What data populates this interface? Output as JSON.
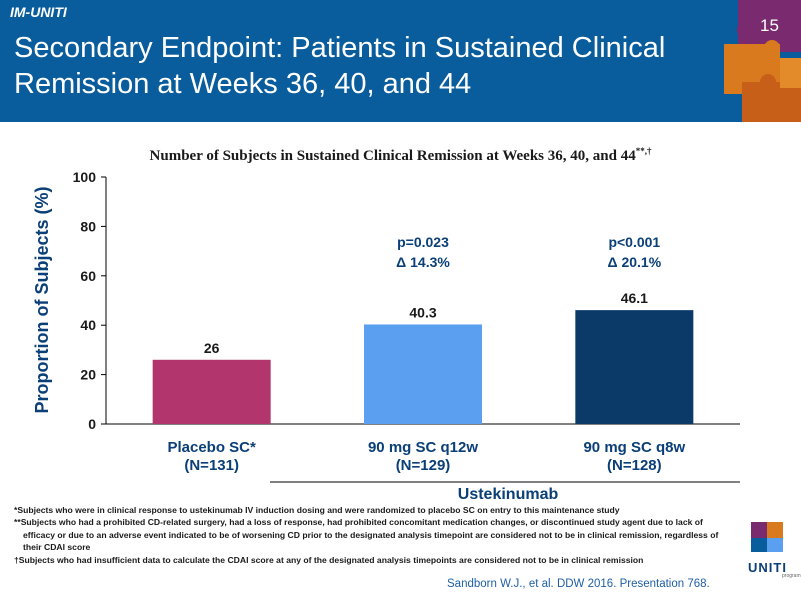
{
  "header": {
    "study_tag": "IM-UNITI",
    "title": "Secondary Endpoint: Patients in Sustained Clinical Remission at Weeks 36, 40, and 44",
    "slide_number": "15",
    "background_color": "#0a5d9d"
  },
  "chart_data": {
    "type": "bar",
    "title": "Number of Subjects in Sustained Clinical Remission at Weeks 36, 40, and 44",
    "title_superscript": "**,†",
    "ylabel": "Proportion of Subjects (%)",
    "ylim": [
      0,
      100
    ],
    "yticks": [
      "0",
      "20",
      "40",
      "60",
      "80",
      "100"
    ],
    "categories": [
      {
        "label": "Placebo SC*",
        "n": "(N=131)"
      },
      {
        "label": "90 mg SC q12w",
        "n": "(N=129)"
      },
      {
        "label": "90 mg SC q8w",
        "n": "(N=128)"
      }
    ],
    "values": [
      26,
      40.3,
      46.1
    ],
    "value_labels": [
      "26",
      "40.3",
      "46.1"
    ],
    "bar_colors": [
      "#b2356e",
      "#5b9ff0",
      "#0b3a69"
    ],
    "annotations": [
      {
        "category_index": 1,
        "p": "p=0.023",
        "delta": "Δ 14.3%"
      },
      {
        "category_index": 2,
        "p": "p<0.001",
        "delta": "Δ 20.1%"
      }
    ],
    "group_label": "Ustekinumab",
    "grid": false
  },
  "footnotes": [
    "*Subjects who were in clinical response to ustekinumab IV induction dosing and were randomized to placebo SC on entry to this maintenance study",
    "**Subjects who had a prohibited CD-related surgery,  had a loss of response, had prohibited concomitant medication changes, or discontinued study agent due to lack of efficacy or due to an adverse event indicated to be of worsening CD prior to the designated analysis timepoint are considered not to be in clinical remission, regardless of their CDAI score",
    "†Subjects who had insufficient data to calculate the CDAI score at any of the designated analysis timepoints are considered not to be in clinical remission"
  ],
  "citation": "Sandborn W.J., et al. DDW 2016. Presentation 768.",
  "logo": {
    "text": "UNITI",
    "subtext": "program"
  }
}
